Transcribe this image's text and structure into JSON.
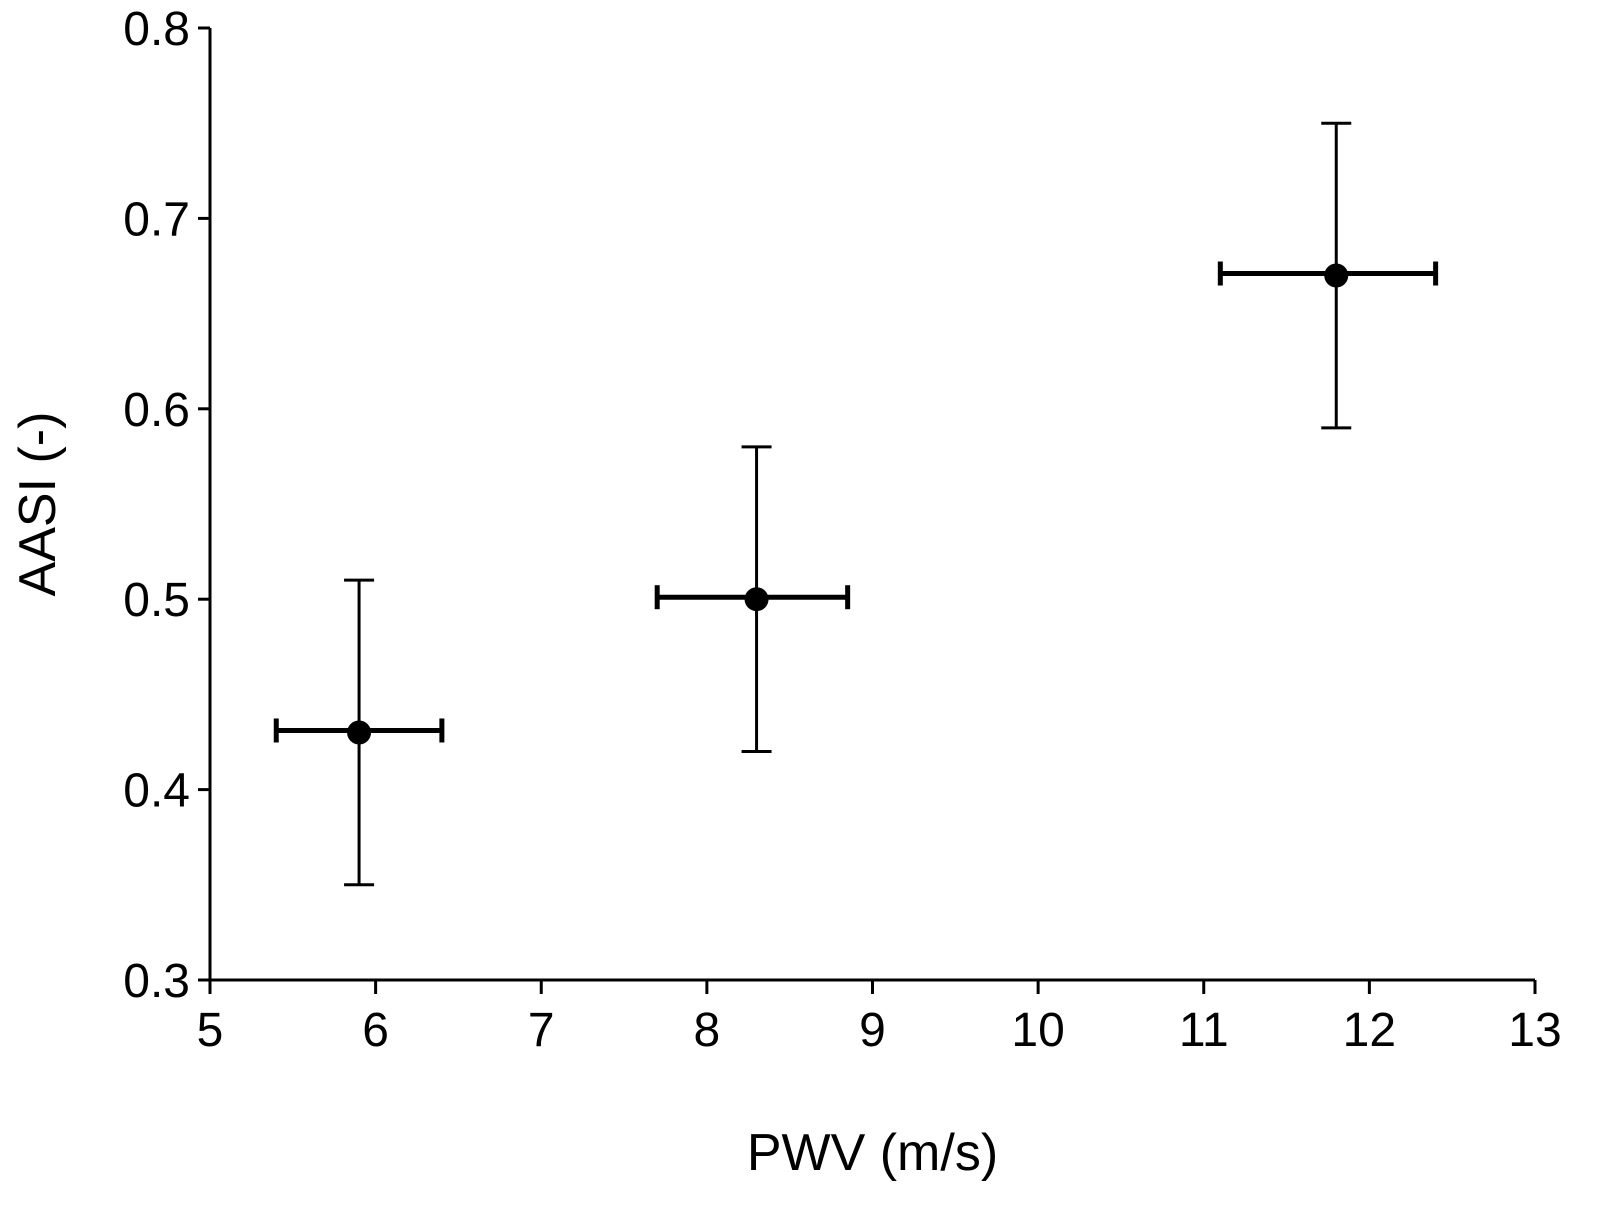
{
  "chart_data": {
    "type": "scatter",
    "title": "",
    "xlabel": "PWV (m/s)",
    "ylabel": "AASI (-)",
    "xlim": [
      5,
      13
    ],
    "ylim": [
      0.3,
      0.8
    ],
    "x_ticks": [
      5,
      6,
      7,
      8,
      9,
      10,
      11,
      12,
      13
    ],
    "y_ticks": [
      0.3,
      0.4,
      0.5,
      0.6,
      0.7,
      0.8
    ],
    "x_tick_labels": [
      "5",
      "6",
      "7",
      "8",
      "9",
      "10",
      "11",
      "12",
      "13"
    ],
    "y_tick_labels": [
      "0.3",
      "0.4",
      "0.5",
      "0.6",
      "0.7",
      "0.8"
    ],
    "grid": false,
    "legend": "none",
    "marker_color": "#000000",
    "points": [
      {
        "x": 5.9,
        "y": 0.43,
        "x_err": [
          5.4,
          6.4
        ],
        "y_err": [
          0.35,
          0.51
        ]
      },
      {
        "x": 8.3,
        "y": 0.5,
        "x_err": [
          7.7,
          8.85
        ],
        "y_err": [
          0.42,
          0.58
        ]
      },
      {
        "x": 11.8,
        "y": 0.67,
        "x_err": [
          11.1,
          12.4
        ],
        "y_err": [
          0.59,
          0.75
        ]
      }
    ]
  }
}
